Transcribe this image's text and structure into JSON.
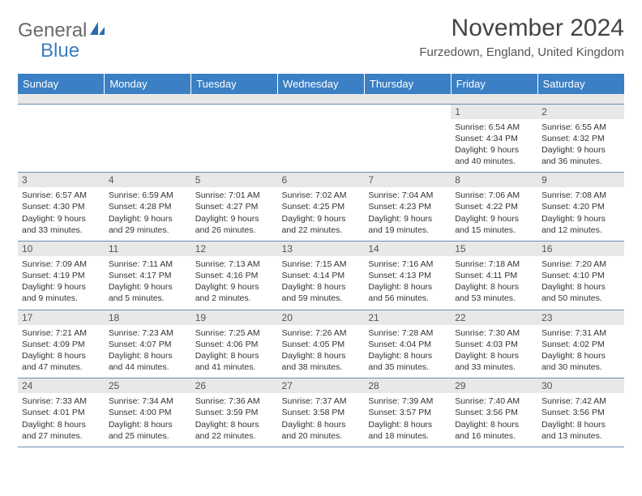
{
  "logo": {
    "part1": "General",
    "part2": "Blue"
  },
  "title": "November 2024",
  "location": "Furzedown, England, United Kingdom",
  "colors": {
    "header_bg": "#3b7fc4",
    "header_text": "#ffffff",
    "daynum_bg": "#e8e8e8",
    "grid_border": "#6a8bb5",
    "body_text": "#333333",
    "title_text": "#444444"
  },
  "fonts": {
    "title_size_pt": 22,
    "location_size_pt": 11,
    "dayheader_size_pt": 10,
    "cell_size_pt": 8
  },
  "day_headers": [
    "Sunday",
    "Monday",
    "Tuesday",
    "Wednesday",
    "Thursday",
    "Friday",
    "Saturday"
  ],
  "weeks": [
    [
      {
        "n": "",
        "sr": "",
        "ss": "",
        "dl": ""
      },
      {
        "n": "",
        "sr": "",
        "ss": "",
        "dl": ""
      },
      {
        "n": "",
        "sr": "",
        "ss": "",
        "dl": ""
      },
      {
        "n": "",
        "sr": "",
        "ss": "",
        "dl": ""
      },
      {
        "n": "",
        "sr": "",
        "ss": "",
        "dl": ""
      },
      {
        "n": "1",
        "sr": "Sunrise: 6:54 AM",
        "ss": "Sunset: 4:34 PM",
        "dl": "Daylight: 9 hours and 40 minutes."
      },
      {
        "n": "2",
        "sr": "Sunrise: 6:55 AM",
        "ss": "Sunset: 4:32 PM",
        "dl": "Daylight: 9 hours and 36 minutes."
      }
    ],
    [
      {
        "n": "3",
        "sr": "Sunrise: 6:57 AM",
        "ss": "Sunset: 4:30 PM",
        "dl": "Daylight: 9 hours and 33 minutes."
      },
      {
        "n": "4",
        "sr": "Sunrise: 6:59 AM",
        "ss": "Sunset: 4:28 PM",
        "dl": "Daylight: 9 hours and 29 minutes."
      },
      {
        "n": "5",
        "sr": "Sunrise: 7:01 AM",
        "ss": "Sunset: 4:27 PM",
        "dl": "Daylight: 9 hours and 26 minutes."
      },
      {
        "n": "6",
        "sr": "Sunrise: 7:02 AM",
        "ss": "Sunset: 4:25 PM",
        "dl": "Daylight: 9 hours and 22 minutes."
      },
      {
        "n": "7",
        "sr": "Sunrise: 7:04 AM",
        "ss": "Sunset: 4:23 PM",
        "dl": "Daylight: 9 hours and 19 minutes."
      },
      {
        "n": "8",
        "sr": "Sunrise: 7:06 AM",
        "ss": "Sunset: 4:22 PM",
        "dl": "Daylight: 9 hours and 15 minutes."
      },
      {
        "n": "9",
        "sr": "Sunrise: 7:08 AM",
        "ss": "Sunset: 4:20 PM",
        "dl": "Daylight: 9 hours and 12 minutes."
      }
    ],
    [
      {
        "n": "10",
        "sr": "Sunrise: 7:09 AM",
        "ss": "Sunset: 4:19 PM",
        "dl": "Daylight: 9 hours and 9 minutes."
      },
      {
        "n": "11",
        "sr": "Sunrise: 7:11 AM",
        "ss": "Sunset: 4:17 PM",
        "dl": "Daylight: 9 hours and 5 minutes."
      },
      {
        "n": "12",
        "sr": "Sunrise: 7:13 AM",
        "ss": "Sunset: 4:16 PM",
        "dl": "Daylight: 9 hours and 2 minutes."
      },
      {
        "n": "13",
        "sr": "Sunrise: 7:15 AM",
        "ss": "Sunset: 4:14 PM",
        "dl": "Daylight: 8 hours and 59 minutes."
      },
      {
        "n": "14",
        "sr": "Sunrise: 7:16 AM",
        "ss": "Sunset: 4:13 PM",
        "dl": "Daylight: 8 hours and 56 minutes."
      },
      {
        "n": "15",
        "sr": "Sunrise: 7:18 AM",
        "ss": "Sunset: 4:11 PM",
        "dl": "Daylight: 8 hours and 53 minutes."
      },
      {
        "n": "16",
        "sr": "Sunrise: 7:20 AM",
        "ss": "Sunset: 4:10 PM",
        "dl": "Daylight: 8 hours and 50 minutes."
      }
    ],
    [
      {
        "n": "17",
        "sr": "Sunrise: 7:21 AM",
        "ss": "Sunset: 4:09 PM",
        "dl": "Daylight: 8 hours and 47 minutes."
      },
      {
        "n": "18",
        "sr": "Sunrise: 7:23 AM",
        "ss": "Sunset: 4:07 PM",
        "dl": "Daylight: 8 hours and 44 minutes."
      },
      {
        "n": "19",
        "sr": "Sunrise: 7:25 AM",
        "ss": "Sunset: 4:06 PM",
        "dl": "Daylight: 8 hours and 41 minutes."
      },
      {
        "n": "20",
        "sr": "Sunrise: 7:26 AM",
        "ss": "Sunset: 4:05 PM",
        "dl": "Daylight: 8 hours and 38 minutes."
      },
      {
        "n": "21",
        "sr": "Sunrise: 7:28 AM",
        "ss": "Sunset: 4:04 PM",
        "dl": "Daylight: 8 hours and 35 minutes."
      },
      {
        "n": "22",
        "sr": "Sunrise: 7:30 AM",
        "ss": "Sunset: 4:03 PM",
        "dl": "Daylight: 8 hours and 33 minutes."
      },
      {
        "n": "23",
        "sr": "Sunrise: 7:31 AM",
        "ss": "Sunset: 4:02 PM",
        "dl": "Daylight: 8 hours and 30 minutes."
      }
    ],
    [
      {
        "n": "24",
        "sr": "Sunrise: 7:33 AM",
        "ss": "Sunset: 4:01 PM",
        "dl": "Daylight: 8 hours and 27 minutes."
      },
      {
        "n": "25",
        "sr": "Sunrise: 7:34 AM",
        "ss": "Sunset: 4:00 PM",
        "dl": "Daylight: 8 hours and 25 minutes."
      },
      {
        "n": "26",
        "sr": "Sunrise: 7:36 AM",
        "ss": "Sunset: 3:59 PM",
        "dl": "Daylight: 8 hours and 22 minutes."
      },
      {
        "n": "27",
        "sr": "Sunrise: 7:37 AM",
        "ss": "Sunset: 3:58 PM",
        "dl": "Daylight: 8 hours and 20 minutes."
      },
      {
        "n": "28",
        "sr": "Sunrise: 7:39 AM",
        "ss": "Sunset: 3:57 PM",
        "dl": "Daylight: 8 hours and 18 minutes."
      },
      {
        "n": "29",
        "sr": "Sunrise: 7:40 AM",
        "ss": "Sunset: 3:56 PM",
        "dl": "Daylight: 8 hours and 16 minutes."
      },
      {
        "n": "30",
        "sr": "Sunrise: 7:42 AM",
        "ss": "Sunset: 3:56 PM",
        "dl": "Daylight: 8 hours and 13 minutes."
      }
    ]
  ]
}
